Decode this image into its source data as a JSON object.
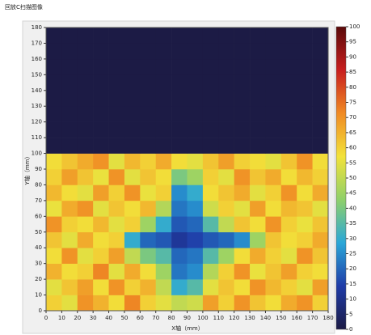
{
  "chart_data": {
    "type": "heatmap",
    "title": "回放C扫描图像",
    "x_label": "X轴（mm）",
    "y_label": "Y轴（mm）",
    "xlim": [
      0,
      180
    ],
    "ylim": [
      0,
      180
    ],
    "xticks": [
      0,
      10,
      20,
      30,
      40,
      50,
      60,
      70,
      80,
      90,
      100,
      110,
      120,
      130,
      140,
      150,
      160,
      170,
      180
    ],
    "yticks": [
      0,
      10,
      20,
      30,
      40,
      50,
      60,
      70,
      80,
      90,
      100,
      110,
      120,
      130,
      140,
      150,
      160,
      170,
      180
    ],
    "xbins": [
      0,
      10,
      20,
      30,
      40,
      50,
      60,
      70,
      80,
      90,
      100,
      110,
      120,
      130,
      140,
      150,
      160,
      170,
      180
    ],
    "ybins": [
      0,
      10,
      20,
      30,
      40,
      50,
      60,
      70,
      80,
      90,
      100,
      110,
      120,
      130,
      140,
      150,
      160,
      170,
      180
    ],
    "z": [
      [
        60,
        55,
        70,
        65,
        58,
        72,
        60,
        55,
        50,
        52,
        68,
        60,
        70,
        62,
        58,
        66,
        70,
        60
      ],
      [
        55,
        62,
        68,
        58,
        70,
        60,
        65,
        50,
        30,
        35,
        55,
        62,
        58,
        70,
        64,
        60,
        55,
        68
      ],
      [
        65,
        58,
        60,
        72,
        55,
        66,
        58,
        45,
        22,
        25,
        48,
        60,
        70,
        56,
        62,
        68,
        60,
        58
      ],
      [
        58,
        70,
        55,
        60,
        68,
        50,
        40,
        35,
        20,
        22,
        35,
        45,
        58,
        66,
        60,
        55,
        70,
        62
      ],
      [
        62,
        55,
        66,
        58,
        60,
        30,
        20,
        18,
        12,
        15,
        18,
        20,
        25,
        45,
        62,
        58,
        60,
        66
      ],
      [
        70,
        60,
        58,
        64,
        55,
        60,
        45,
        30,
        18,
        20,
        35,
        50,
        62,
        58,
        70,
        60,
        56,
        62
      ],
      [
        56,
        66,
        70,
        55,
        62,
        58,
        64,
        48,
        22,
        25,
        52,
        60,
        55,
        68,
        58,
        64,
        62,
        55
      ],
      [
        64,
        58,
        55,
        68,
        60,
        70,
        56,
        60,
        25,
        30,
        58,
        62,
        66,
        55,
        60,
        70,
        58,
        66
      ],
      [
        60,
        68,
        62,
        56,
        70,
        55,
        62,
        58,
        40,
        45,
        60,
        55,
        70,
        62,
        66,
        58,
        64,
        60
      ],
      [
        58,
        62,
        66,
        70,
        55,
        64,
        60,
        66,
        58,
        55,
        62,
        68,
        60,
        58,
        55,
        62,
        70,
        58
      ],
      [
        0,
        0,
        0,
        0,
        0,
        0,
        0,
        0,
        0,
        0,
        0,
        0,
        0,
        0,
        0,
        0,
        0,
        0
      ],
      [
        0,
        0,
        0,
        0,
        0,
        0,
        0,
        0,
        0,
        0,
        0,
        0,
        0,
        0,
        0,
        0,
        0,
        0
      ],
      [
        0,
        0,
        0,
        0,
        0,
        0,
        0,
        0,
        0,
        0,
        0,
        0,
        0,
        0,
        0,
        0,
        0,
        0
      ],
      [
        0,
        0,
        0,
        0,
        0,
        0,
        0,
        0,
        0,
        0,
        0,
        0,
        0,
        0,
        0,
        0,
        0,
        0
      ],
      [
        0,
        0,
        0,
        0,
        0,
        0,
        0,
        0,
        0,
        0,
        0,
        0,
        0,
        0,
        0,
        0,
        0,
        0
      ],
      [
        0,
        0,
        0,
        0,
        0,
        0,
        0,
        0,
        0,
        0,
        0,
        0,
        0,
        0,
        0,
        0,
        0,
        0
      ],
      [
        0,
        0,
        0,
        0,
        0,
        0,
        0,
        0,
        0,
        0,
        0,
        0,
        0,
        0,
        0,
        0,
        0,
        0
      ],
      [
        0,
        0,
        0,
        0,
        0,
        0,
        0,
        0,
        0,
        0,
        0,
        0,
        0,
        0,
        0,
        0,
        0,
        0
      ]
    ],
    "clim": [
      0,
      100
    ],
    "cticks": [
      0,
      5,
      10,
      15,
      20,
      25,
      30,
      35,
      40,
      45,
      50,
      55,
      60,
      65,
      70,
      75,
      80,
      85,
      90,
      95,
      100
    ],
    "colormap": [
      "#1c1b45",
      "#1f3ca8",
      "#2aa7d8",
      "#8fd06a",
      "#f2e23a",
      "#f08a24",
      "#c81e1e",
      "#5a0a0a"
    ]
  }
}
